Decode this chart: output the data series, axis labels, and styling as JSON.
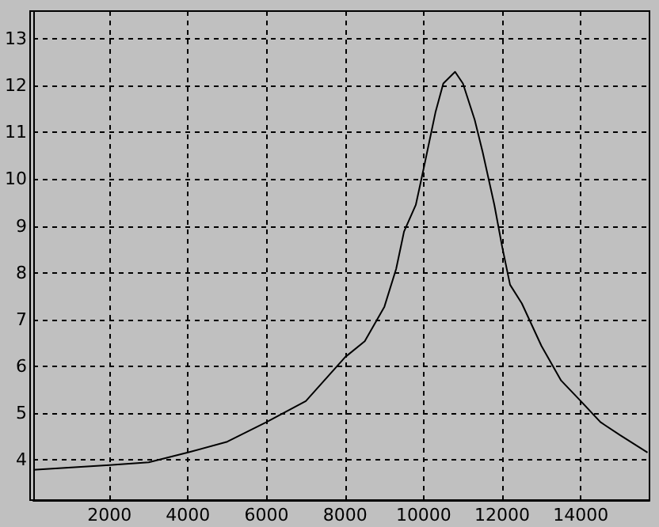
{
  "chart_data": {
    "type": "line",
    "x": [
      60,
      2000,
      3000,
      4000,
      5000,
      6000,
      7000,
      8000,
      8500,
      9000,
      9300,
      9500,
      9800,
      10000,
      10300,
      10500,
      10800,
      11000,
      11300,
      11500,
      11800,
      12000,
      12200,
      12500,
      13000,
      13500,
      14000,
      14500,
      15000,
      15700
    ],
    "series": [
      {
        "color": "#000000",
        "values": [
          3.78,
          3.88,
          3.94,
          4.15,
          4.38,
          4.8,
          5.25,
          6.19,
          6.53,
          7.27,
          8.08,
          8.88,
          9.45,
          10.23,
          11.43,
          12.05,
          12.3,
          12.05,
          11.27,
          10.59,
          9.45,
          8.55,
          7.74,
          7.34,
          6.43,
          5.69,
          5.25,
          4.8,
          4.52,
          4.15
        ]
      }
    ],
    "xlim": [
      60,
      15750
    ],
    "ylim": [
      3.13,
      13.6
    ],
    "xticks": [
      2000,
      4000,
      6000,
      8000,
      10000,
      12000,
      14000
    ],
    "yticks": [
      4,
      5,
      6,
      7,
      8,
      9,
      10,
      11,
      12,
      13
    ],
    "grid": true,
    "marker": "none",
    "line_style": "solid"
  }
}
